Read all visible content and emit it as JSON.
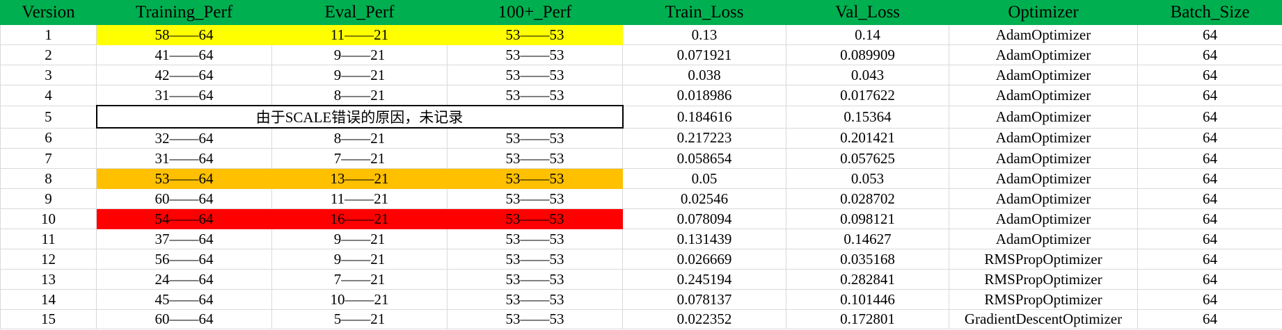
{
  "headers": [
    "Version",
    "Training_Perf",
    "Eval_Perf",
    "100+_Perf",
    "Train_Loss",
    "Val_Loss",
    "Optimizer",
    "Batch_Size"
  ],
  "rows": [
    {
      "version": "1",
      "training": "58——64",
      "eval": "11——21",
      "perf100": "53——53",
      "train_loss": "0.13",
      "val_loss": "0.14",
      "optimizer": "AdamOptimizer",
      "batch": "64",
      "highlight": "yellow"
    },
    {
      "version": "2",
      "training": "41——64",
      "eval": "9——21",
      "perf100": "53——53",
      "train_loss": "0.071921",
      "val_loss": "0.089909",
      "optimizer": "AdamOptimizer",
      "batch": "64"
    },
    {
      "version": "3",
      "training": "42——64",
      "eval": "9——21",
      "perf100": "53——53",
      "train_loss": "0.038",
      "val_loss": "0.043",
      "optimizer": "AdamOptimizer",
      "batch": "64"
    },
    {
      "version": "4",
      "training": "31——64",
      "eval": "8——21",
      "perf100": "53——53",
      "train_loss": "0.018986",
      "val_loss": "0.017622",
      "optimizer": "AdamOptimizer",
      "batch": "64"
    },
    {
      "version": "5",
      "note": "由于SCALE错误的原因，未记录",
      "train_loss": "0.184616",
      "val_loss": "0.15364",
      "optimizer": "AdamOptimizer",
      "batch": "64"
    },
    {
      "version": "6",
      "training": "32——64",
      "eval": "8——21",
      "perf100": "53——53",
      "train_loss": "0.217223",
      "val_loss": "0.201421",
      "optimizer": "AdamOptimizer",
      "batch": "64"
    },
    {
      "version": "7",
      "training": "31——64",
      "eval": "7——21",
      "perf100": "53——53",
      "train_loss": "0.058654",
      "val_loss": "0.057625",
      "optimizer": "AdamOptimizer",
      "batch": "64"
    },
    {
      "version": "8",
      "training": "53——64",
      "eval": "13——21",
      "perf100": "53——53",
      "train_loss": "0.05",
      "val_loss": "0.053",
      "optimizer": "AdamOptimizer",
      "batch": "64",
      "highlight": "orange"
    },
    {
      "version": "9",
      "training": "60——64",
      "eval": "11——21",
      "perf100": "53——53",
      "train_loss": "0.02546",
      "val_loss": "0.028702",
      "optimizer": "AdamOptimizer",
      "batch": "64"
    },
    {
      "version": "10",
      "training": "54——64",
      "eval": "16——21",
      "perf100": "53——53",
      "train_loss": "0.078094",
      "val_loss": "0.098121",
      "optimizer": "AdamOptimizer",
      "batch": "64",
      "highlight": "red"
    },
    {
      "version": "11",
      "training": "37——64",
      "eval": "9——21",
      "perf100": "53——53",
      "train_loss": "0.131439",
      "val_loss": "0.14627",
      "optimizer": "AdamOptimizer",
      "batch": "64"
    },
    {
      "version": "12",
      "training": "56——64",
      "eval": "9——21",
      "perf100": "53——53",
      "train_loss": "0.026669",
      "val_loss": "0.035168",
      "optimizer": "RMSPropOptimizer",
      "batch": "64"
    },
    {
      "version": "13",
      "training": "24——64",
      "eval": "7——21",
      "perf100": "53——53",
      "train_loss": "0.245194",
      "val_loss": "0.282841",
      "optimizer": "RMSPropOptimizer",
      "batch": "64"
    },
    {
      "version": "14",
      "training": "45——64",
      "eval": "10——21",
      "perf100": "53——53",
      "train_loss": "0.078137",
      "val_loss": "0.101446",
      "optimizer": "RMSPropOptimizer",
      "batch": "64"
    },
    {
      "version": "15",
      "training": "60——64",
      "eval": "5——21",
      "perf100": "53——53",
      "train_loss": "0.022352",
      "val_loss": "0.172801",
      "optimizer": "GradientDescentOptimizer",
      "batch": "64"
    }
  ],
  "colors": {
    "header": "#00b050",
    "yellow": "#ffff00",
    "orange": "#ffc000",
    "red": "#ff0000"
  }
}
